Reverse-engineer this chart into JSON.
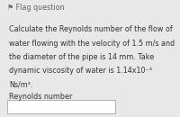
{
  "header_text": "⚑ Flag question",
  "header_bg": "#d8d8d8",
  "header_fg": "#666666",
  "white_strip_bg": "#f5f5f5",
  "body_bg": "#cfe0f0",
  "body_text_lines": [
    "Calculate the Reynolds number of the flow of",
    "water flowing with the velocity of 1.5 m/s and",
    "the diameter of the pipe is 14 mm. Take",
    "dynamic viscosity of water is 1.14x10⁻³",
    "Ns/m²."
  ],
  "label_text": "Reynolds number",
  "input_box_bg": "#ffffff",
  "input_box_border": "#b0b0b0",
  "body_fontsize": 5.8,
  "label_fontsize": 5.8,
  "header_fontsize": 5.8,
  "fig_bg": "#e8e8e8"
}
